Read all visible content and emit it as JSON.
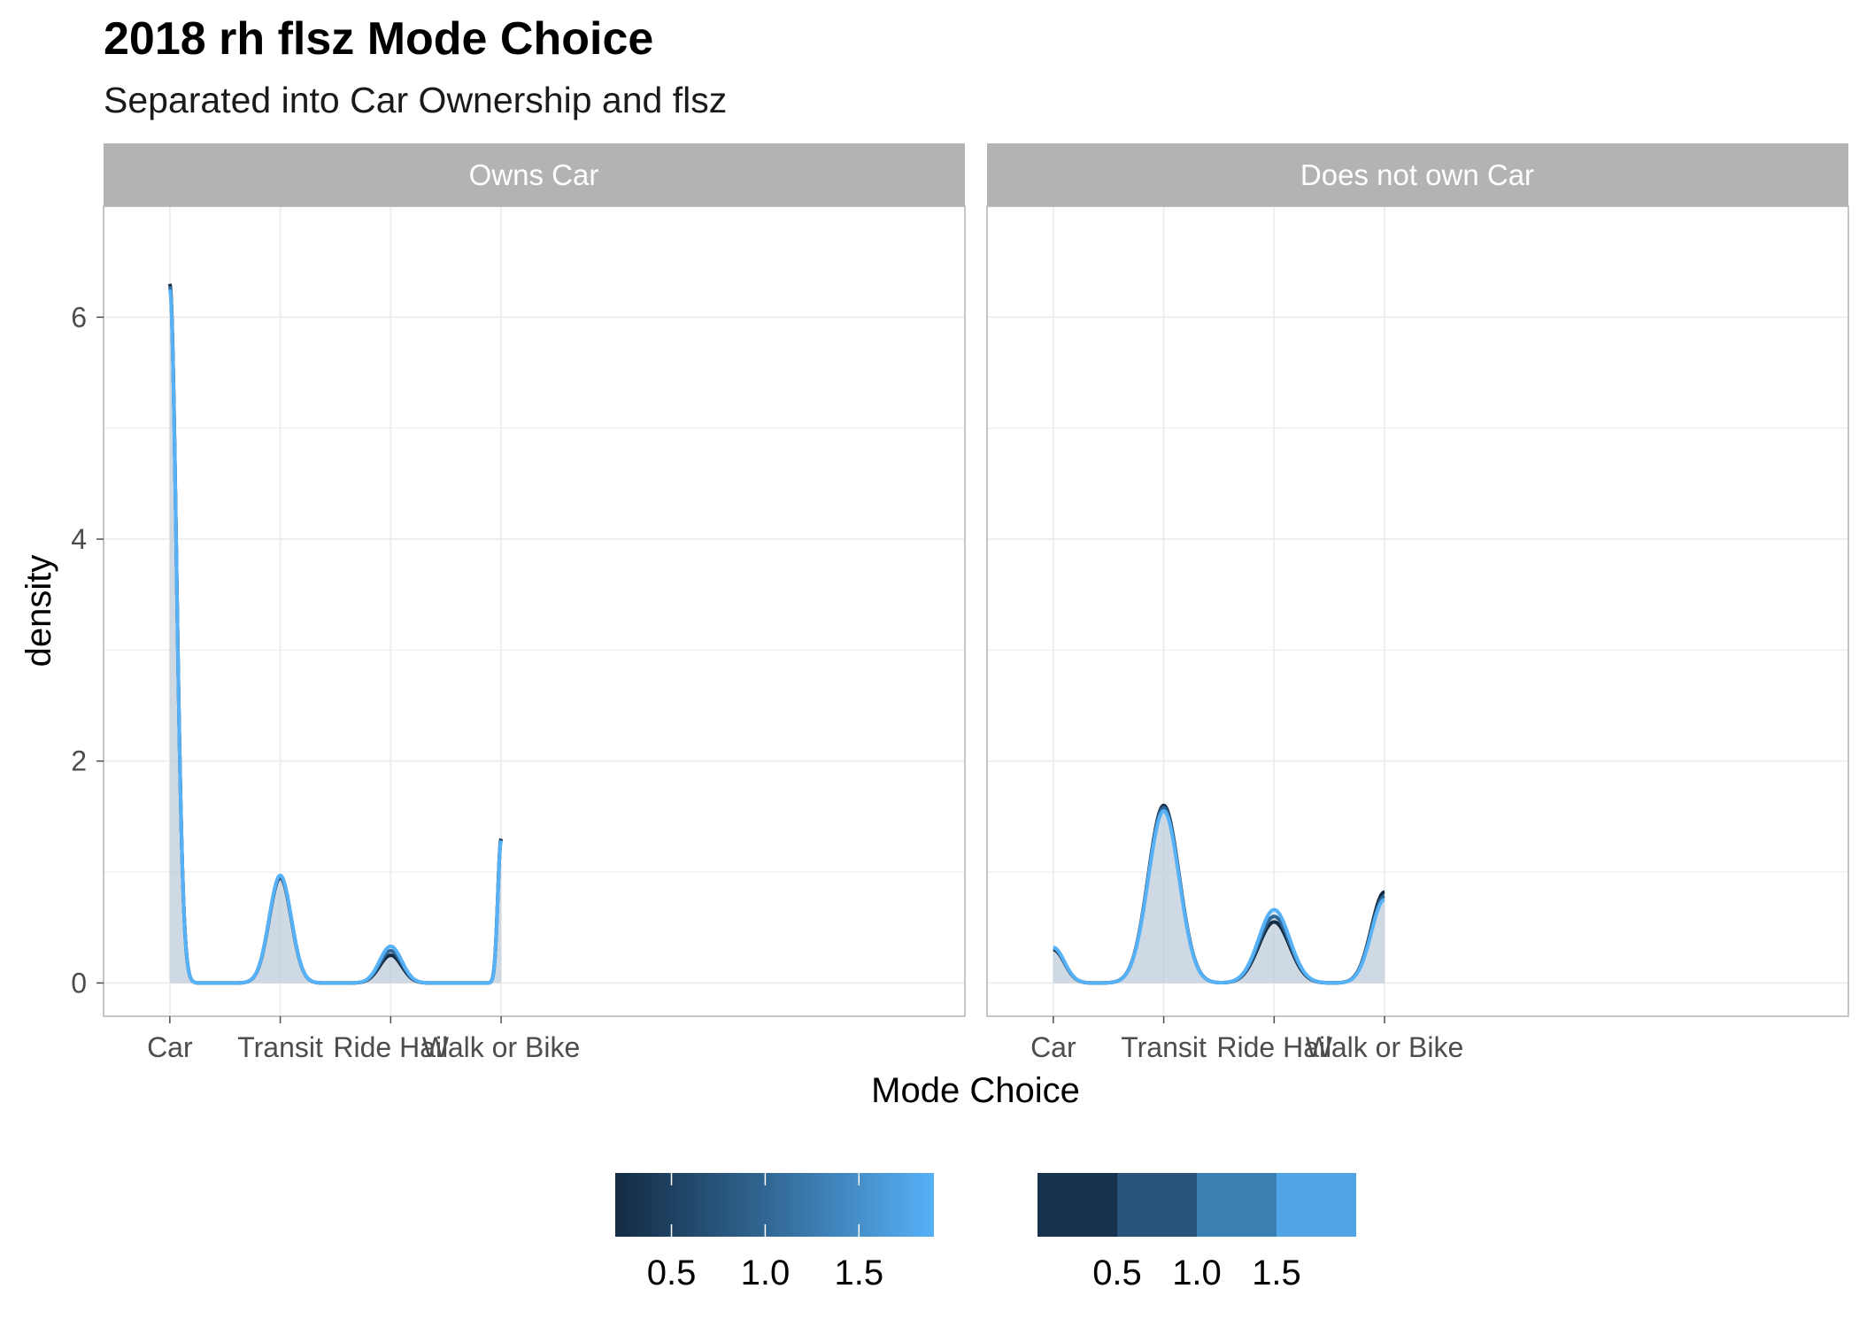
{
  "title": "2018 rh flsz Mode Choice",
  "subtitle": "Separated into Car Ownership and flsz",
  "chart_data": {
    "type": "area",
    "x_categories": [
      "Car",
      "Transit",
      "Ride Hail",
      "Walk or Bike"
    ],
    "x_tick_labels": [
      "Car",
      "Transit",
      "Ride Hail",
      "Walk or Bike"
    ],
    "xlabel": "Mode Choice",
    "ylabel": "density",
    "ylim": [
      -0.3,
      7.0
    ],
    "y_ticks": [
      "0",
      "2",
      "4",
      "6"
    ],
    "grid": true,
    "colors": {
      "dark": "#132b43",
      "mid1": "#28547a",
      "mid2": "#3b7fb3",
      "light": "#56b1f7",
      "fill": "#bccbd9",
      "strip": "#b3b3b3"
    },
    "panels": [
      {
        "strip_label": "Owns Car",
        "series": [
          {
            "flsz": 0.3,
            "color": "#132b43",
            "peaks": [
              6.3,
              0.95,
              0.25,
              1.3
            ]
          },
          {
            "flsz": 1.0,
            "color": "#2f6796",
            "peaks": [
              6.28,
              0.96,
              0.29,
              1.29
            ]
          },
          {
            "flsz": 1.7,
            "color": "#56b1f7",
            "peaks": [
              6.25,
              0.97,
              0.33,
              1.28
            ]
          }
        ]
      },
      {
        "strip_label": "Does not own Car",
        "series": [
          {
            "flsz": 0.3,
            "color": "#132b43",
            "peaks": [
              0.3,
              1.6,
              0.55,
              0.82
            ]
          },
          {
            "flsz": 1.0,
            "color": "#2f6796",
            "peaks": [
              0.31,
              1.58,
              0.6,
              0.78
            ]
          },
          {
            "flsz": 1.7,
            "color": "#56b1f7",
            "peaks": [
              0.32,
              1.55,
              0.66,
              0.75
            ]
          }
        ]
      }
    ],
    "legend": {
      "position": "bottom",
      "continuous": {
        "labels": [
          "0.5",
          "1.0",
          "1.5"
        ],
        "range": [
          0.2,
          1.9
        ]
      },
      "binned": {
        "colors": [
          "#17324f",
          "#28547a",
          "#3b7fb3",
          "#50a5e6"
        ],
        "labels": [
          "0.5",
          "1.0",
          "1.5"
        ]
      }
    }
  }
}
